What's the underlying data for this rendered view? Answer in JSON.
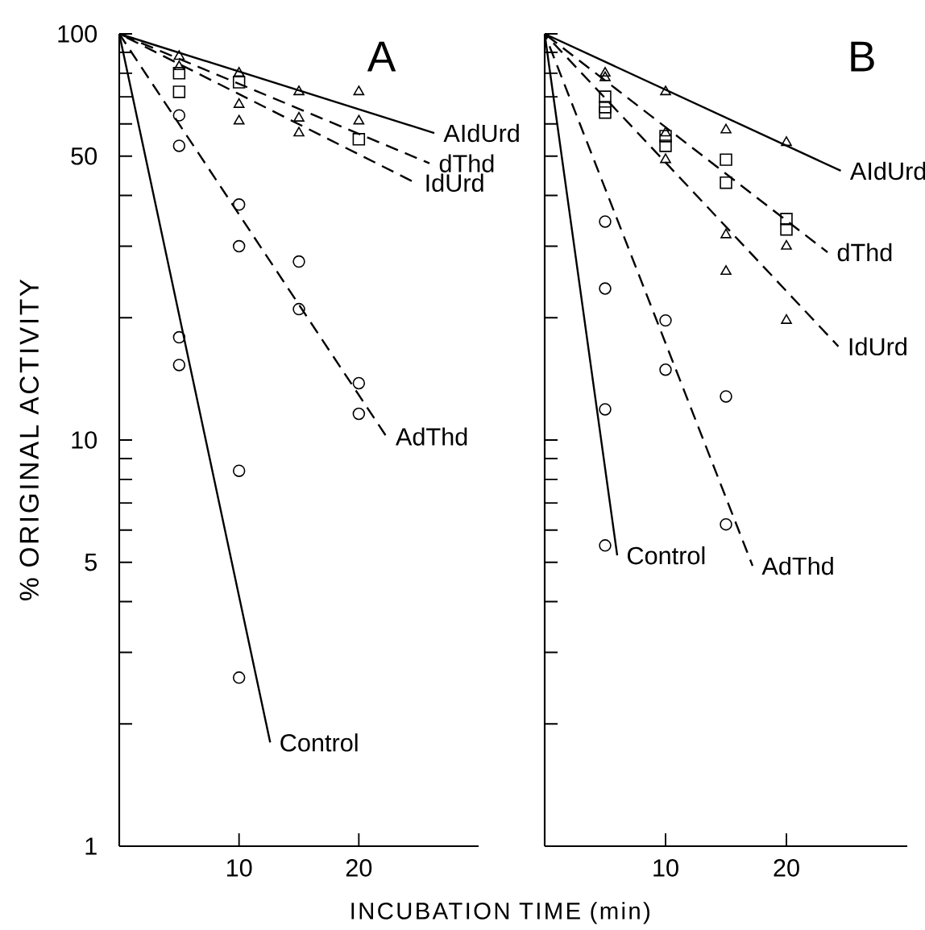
{
  "chart_data": [
    {
      "type": "scatter",
      "title": "A",
      "xlabel": "INCUBATION TIME (min)",
      "ylabel": "% ORIGINAL ACTIVITY",
      "log": "y",
      "xlim": [
        0,
        30
      ],
      "ylim": [
        1,
        100
      ],
      "xticks": [
        10,
        20
      ],
      "yticks": [
        1,
        {
          "value": 2,
          "label": null
        },
        {
          "value": 3,
          "label": null
        },
        {
          "value": 4,
          "label": null
        },
        5,
        {
          "value": 6,
          "label": null
        },
        {
          "value": 7,
          "label": null
        },
        {
          "value": 8,
          "label": null
        },
        {
          "value": 9,
          "label": null
        },
        10,
        {
          "value": 20,
          "label": null
        },
        {
          "value": 30,
          "label": null
        },
        {
          "value": 40,
          "label": null
        },
        50,
        {
          "value": 60,
          "label": null
        },
        {
          "value": 70,
          "label": null
        },
        {
          "value": 80,
          "label": null
        },
        {
          "value": 90,
          "label": null
        },
        100
      ],
      "series": [
        {
          "marker": "triangle",
          "color": "#000000",
          "x": [
            5,
            10,
            15,
            20,
            20
          ],
          "values": [
            88,
            80,
            72,
            72,
            61
          ]
        },
        {
          "marker": "square",
          "color": "#000000",
          "x": [
            5,
            5,
            10,
            20
          ],
          "values": [
            80,
            72,
            76,
            55
          ]
        },
        {
          "marker": "triangle",
          "color": "#000000",
          "x": [
            5,
            10,
            10,
            15,
            15
          ],
          "values": [
            83,
            67,
            61,
            62,
            57
          ]
        },
        {
          "marker": "circle",
          "color": "#000000",
          "x": [
            5,
            5,
            10,
            10,
            15,
            15,
            20,
            20
          ],
          "values": [
            63,
            53,
            38,
            30,
            27.5,
            21,
            13.8,
            11.6
          ]
        },
        {
          "marker": "circle",
          "color": "#000000",
          "x": [
            5,
            5,
            10,
            10
          ],
          "values": [
            17.9,
            15.3,
            8.4,
            2.6
          ]
        },
        {
          "type": "line",
          "name": "AIdUrd",
          "line_style": "solid",
          "color": "#000000",
          "x": [
            0,
            26.3
          ],
          "values": [
            100,
            57
          ]
        },
        {
          "type": "line",
          "name": "dThd",
          "line_style": "dashed",
          "color": "#000000",
          "x": [
            0,
            25.9
          ],
          "values": [
            100,
            48
          ]
        },
        {
          "type": "line",
          "name": "IdUrd",
          "line_style": "dashed",
          "color": "#000000",
          "x": [
            0,
            24.7
          ],
          "values": [
            100,
            43
          ]
        },
        {
          "type": "line",
          "name": "AdThd",
          "line_style": "dashed",
          "color": "#000000",
          "x": [
            0,
            22.3
          ],
          "values": [
            100,
            10.2
          ]
        },
        {
          "type": "line",
          "name": "Control",
          "line_style": "solid",
          "color": "#000000",
          "x": [
            0,
            12.6
          ],
          "values": [
            100,
            1.8
          ]
        }
      ]
    },
    {
      "type": "scatter",
      "title": "B",
      "log": "y",
      "xlim": [
        0,
        30
      ],
      "ylim": [
        1,
        100
      ],
      "tick_labels": "x",
      "xticks": [
        10,
        20
      ],
      "yticks": [
        1,
        {
          "value": 2,
          "label": null
        },
        {
          "value": 3,
          "label": null
        },
        {
          "value": 4,
          "label": null
        },
        5,
        {
          "value": 6,
          "label": null
        },
        {
          "value": 7,
          "label": null
        },
        {
          "value": 8,
          "label": null
        },
        {
          "value": 9,
          "label": null
        },
        10,
        {
          "value": 20,
          "label": null
        },
        {
          "value": 30,
          "label": null
        },
        {
          "value": 40,
          "label": null
        },
        50,
        {
          "value": 60,
          "label": null
        },
        {
          "value": 70,
          "label": null
        },
        {
          "value": 80,
          "label": null
        },
        {
          "value": 90,
          "label": null
        },
        100
      ],
      "series": [
        {
          "marker": "triangle",
          "color": "#000000",
          "x": [
            5,
            5,
            10,
            15,
            20
          ],
          "values": [
            80,
            78,
            72,
            58,
            54
          ]
        },
        {
          "marker": "square",
          "color": "#000000",
          "x": [
            5,
            5,
            5,
            10,
            10,
            15,
            15,
            20,
            20
          ],
          "values": [
            70,
            66,
            64,
            56,
            53,
            49,
            43,
            35,
            33
          ]
        },
        {
          "marker": "triangle",
          "color": "#000000",
          "x": [
            10,
            10,
            15,
            15,
            20,
            20
          ],
          "values": [
            57,
            49,
            32,
            26,
            30,
            19.7
          ]
        },
        {
          "marker": "circle",
          "color": "#000000",
          "x": [
            5,
            5,
            10,
            10,
            15,
            15
          ],
          "values": [
            34.5,
            23.6,
            19.7,
            14.9,
            12.8,
            6.2
          ]
        },
        {
          "marker": "circle",
          "color": "#000000",
          "x": [
            5,
            5
          ],
          "values": [
            11.9,
            5.5
          ]
        },
        {
          "type": "line",
          "name": "AIdUrd",
          "line_style": "solid",
          "color": "#000000",
          "x": [
            0,
            24.5
          ],
          "values": [
            100,
            46
          ]
        },
        {
          "type": "line",
          "name": "dThd",
          "line_style": "dashed",
          "color": "#000000",
          "x": [
            0,
            23.4
          ],
          "values": [
            100,
            29
          ]
        },
        {
          "type": "line",
          "name": "IdUrd",
          "line_style": "dashed",
          "color": "#000000",
          "x": [
            0,
            24.3
          ],
          "values": [
            100,
            17
          ]
        },
        {
          "type": "line",
          "name": "AdThd",
          "line_style": "dashed",
          "color": "#000000",
          "x": [
            0,
            17.2
          ],
          "values": [
            100,
            4.9
          ]
        },
        {
          "type": "line",
          "name": "Control",
          "line_style": "solid",
          "color": "#000000",
          "x": [
            0,
            6
          ],
          "values": [
            100,
            5.2
          ]
        }
      ]
    }
  ]
}
